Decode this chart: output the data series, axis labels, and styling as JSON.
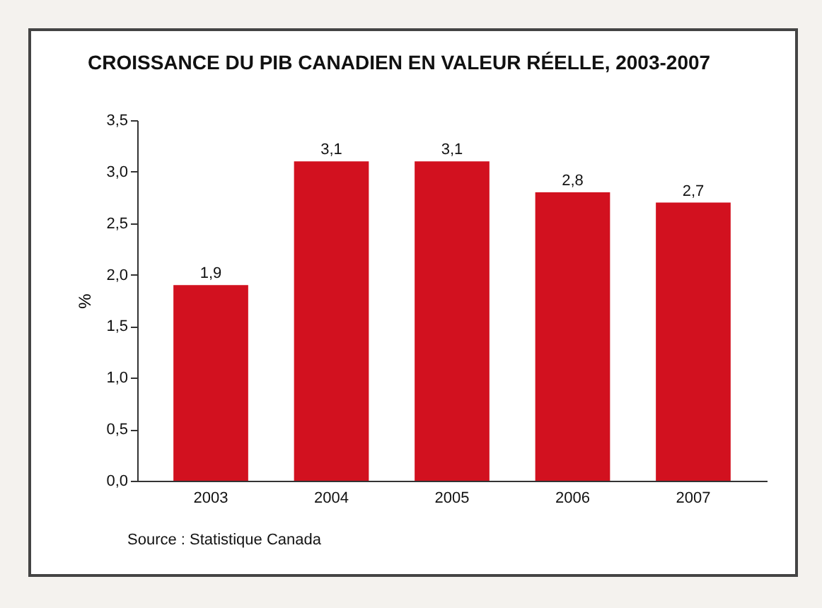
{
  "chart_data": {
    "type": "bar",
    "title": "CROISSANCE DU PIB CANADIEN EN VALEUR RÉELLE, 2003-2007",
    "ylabel": "%",
    "categories": [
      "2003",
      "2004",
      "2005",
      "2006",
      "2007"
    ],
    "values": [
      1.9,
      3.1,
      3.1,
      2.8,
      2.7
    ],
    "value_labels": [
      "1,9",
      "3,1",
      "3,1",
      "2,8",
      "2,7"
    ],
    "color": "#d2111f",
    "ylim": [
      0,
      3.5
    ],
    "yticks": [
      {
        "value": 0,
        "label": "0,0"
      },
      {
        "value": 0.5,
        "label": "0,5"
      },
      {
        "value": 1,
        "label": "1,0"
      },
      {
        "value": 1.5,
        "label": "1,5"
      },
      {
        "value": 2,
        "label": "2,0"
      },
      {
        "value": 2.5,
        "label": "2,5"
      },
      {
        "value": 3,
        "label": "3,0"
      },
      {
        "value": 3.5,
        "label": "3,5"
      }
    ],
    "annotations": [
      "Source : Statistique Canada"
    ]
  }
}
